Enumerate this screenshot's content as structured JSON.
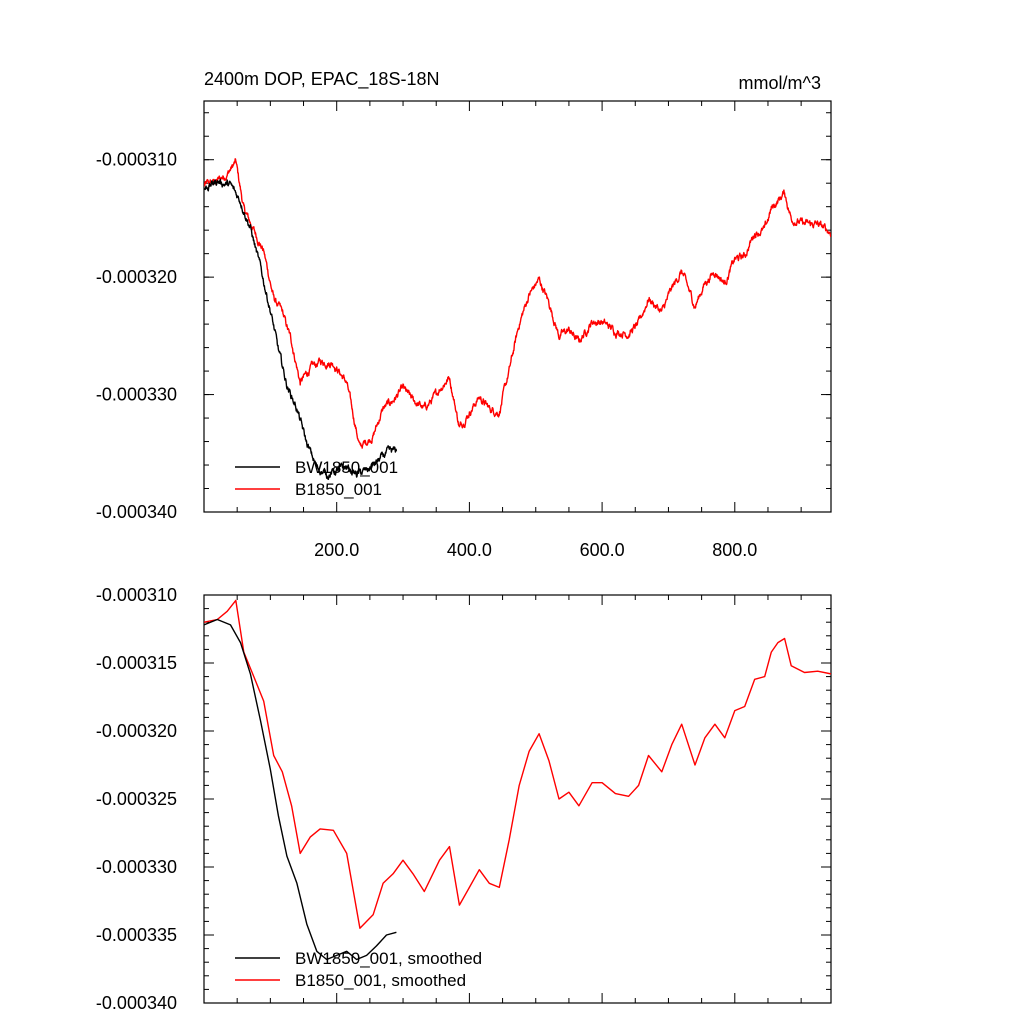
{
  "chart_data": [
    {
      "type": "line",
      "title": "2400m DOP, EPAC_18S-18N",
      "units": "mmol/m^3",
      "xlim": [
        0,
        945
      ],
      "ylim": [
        -0.00034,
        -0.000305
      ],
      "x_ticks": [
        200,
        400,
        600,
        800
      ],
      "x_tick_labels": [
        "200.0",
        "400.0",
        "600.0",
        "800.0"
      ],
      "y_ticks": [
        -0.00031,
        -0.00032,
        -0.00033,
        -0.00034
      ],
      "y_tick_labels": [
        "-0.000310",
        "-0.000320",
        "-0.000330",
        "-0.000340"
      ],
      "legend_position": "bottom-left",
      "noisy": true,
      "series": [
        {
          "name": "BW1850_001",
          "color": "#000000",
          "points": [
            [
              0,
              -0.0003125
            ],
            [
              20,
              -0.0003118
            ],
            [
              40,
              -0.0003122
            ],
            [
              55,
              -0.0003135
            ],
            [
              70,
              -0.0003158
            ],
            [
              85,
              -0.0003192
            ],
            [
              100,
              -0.0003228
            ],
            [
              112,
              -0.0003262
            ],
            [
              125,
              -0.0003292
            ],
            [
              140,
              -0.0003312
            ],
            [
              155,
              -0.0003342
            ],
            [
              170,
              -0.0003362
            ],
            [
              185,
              -0.0003368
            ],
            [
              200,
              -0.0003365
            ],
            [
              215,
              -0.0003362
            ],
            [
              230,
              -0.0003368
            ],
            [
              245,
              -0.0003365
            ],
            [
              260,
              -0.0003358
            ],
            [
              275,
              -0.000335
            ],
            [
              290,
              -0.0003348
            ]
          ]
        },
        {
          "name": "B1850_001",
          "color": "#ff0000",
          "points": [
            [
              0,
              -0.0003122
            ],
            [
              20,
              -0.0003118
            ],
            [
              35,
              -0.0003112
            ],
            [
              48,
              -0.0003102
            ],
            [
              60,
              -0.0003142
            ],
            [
              75,
              -0.000316
            ],
            [
              90,
              -0.0003178
            ],
            [
              105,
              -0.0003218
            ],
            [
              118,
              -0.000323
            ],
            [
              132,
              -0.0003255
            ],
            [
              145,
              -0.000329
            ],
            [
              160,
              -0.0003278
            ],
            [
              175,
              -0.0003272
            ],
            [
              195,
              -0.0003273
            ],
            [
              215,
              -0.000329
            ],
            [
              235,
              -0.0003345
            ],
            [
              255,
              -0.0003335
            ],
            [
              270,
              -0.0003312
            ],
            [
              285,
              -0.0003305
            ],
            [
              300,
              -0.0003295
            ],
            [
              315,
              -0.0003305
            ],
            [
              332,
              -0.0003312
            ],
            [
              348,
              -0.0003302
            ],
            [
              355,
              -0.0003295
            ],
            [
              370,
              -0.0003285
            ],
            [
              385,
              -0.0003328
            ],
            [
              400,
              -0.0003315
            ],
            [
              415,
              -0.0003302
            ],
            [
              430,
              -0.0003312
            ],
            [
              445,
              -0.0003315
            ],
            [
              460,
              -0.000328
            ],
            [
              475,
              -0.000324
            ],
            [
              490,
              -0.0003215
            ],
            [
              505,
              -0.0003202
            ],
            [
              520,
              -0.0003222
            ],
            [
              535,
              -0.000325
            ],
            [
              550,
              -0.0003245
            ],
            [
              565,
              -0.0003255
            ],
            [
              585,
              -0.0003238
            ],
            [
              600,
              -0.0003238
            ],
            [
              620,
              -0.0003246
            ],
            [
              640,
              -0.0003248
            ],
            [
              655,
              -0.000324
            ],
            [
              670,
              -0.0003218
            ],
            [
              690,
              -0.000323
            ],
            [
              705,
              -0.000321
            ],
            [
              720,
              -0.0003195
            ],
            [
              740,
              -0.0003225
            ],
            [
              755,
              -0.0003205
            ],
            [
              770,
              -0.0003195
            ],
            [
              785,
              -0.0003205
            ],
            [
              800,
              -0.0003185
            ],
            [
              815,
              -0.0003182
            ],
            [
              830,
              -0.0003162
            ],
            [
              845,
              -0.000316
            ],
            [
              855,
              -0.0003142
            ],
            [
              865,
              -0.0003135
            ],
            [
              875,
              -0.0003128
            ],
            [
              885,
              -0.000315
            ],
            [
              905,
              -0.0003155
            ],
            [
              925,
              -0.0003155
            ],
            [
              945,
              -0.0003162
            ]
          ]
        }
      ]
    },
    {
      "type": "line",
      "title": "",
      "units": "",
      "xlim": [
        0,
        945
      ],
      "ylim": [
        -0.00034,
        -0.00031
      ],
      "x_ticks": [
        200,
        400,
        600,
        800
      ],
      "x_tick_labels": [],
      "y_ticks": [
        -0.00031,
        -0.000315,
        -0.00032,
        -0.000325,
        -0.00033,
        -0.000335,
        -0.00034
      ],
      "y_tick_labels": [
        "-0.000310",
        "-0.000315",
        "-0.000320",
        "-0.000325",
        "-0.000330",
        "-0.000335",
        "-0.000340"
      ],
      "legend_position": "bottom-left",
      "noisy": false,
      "series": [
        {
          "name": "BW1850_001, smoothed",
          "color": "#000000",
          "points": [
            [
              0,
              -0.0003122
            ],
            [
              20,
              -0.0003118
            ],
            [
              40,
              -0.0003122
            ],
            [
              55,
              -0.0003135
            ],
            [
              70,
              -0.0003158
            ],
            [
              85,
              -0.0003192
            ],
            [
              100,
              -0.0003228
            ],
            [
              112,
              -0.0003262
            ],
            [
              125,
              -0.0003292
            ],
            [
              140,
              -0.0003312
            ],
            [
              155,
              -0.0003342
            ],
            [
              170,
              -0.0003362
            ],
            [
              185,
              -0.0003368
            ],
            [
              200,
              -0.0003365
            ],
            [
              215,
              -0.0003362
            ],
            [
              230,
              -0.0003368
            ],
            [
              245,
              -0.0003365
            ],
            [
              260,
              -0.0003358
            ],
            [
              275,
              -0.000335
            ],
            [
              290,
              -0.0003348
            ]
          ]
        },
        {
          "name": "B1850_001, smoothed",
          "color": "#ff0000",
          "points": [
            [
              0,
              -0.000312
            ],
            [
              20,
              -0.0003118
            ],
            [
              35,
              -0.0003112
            ],
            [
              48,
              -0.0003104
            ],
            [
              60,
              -0.0003142
            ],
            [
              75,
              -0.000316
            ],
            [
              90,
              -0.0003178
            ],
            [
              105,
              -0.0003218
            ],
            [
              118,
              -0.000323
            ],
            [
              132,
              -0.0003255
            ],
            [
              145,
              -0.000329
            ],
            [
              160,
              -0.0003278
            ],
            [
              175,
              -0.0003272
            ],
            [
              195,
              -0.0003273
            ],
            [
              215,
              -0.000329
            ],
            [
              235,
              -0.0003345
            ],
            [
              255,
              -0.0003335
            ],
            [
              270,
              -0.0003312
            ],
            [
              285,
              -0.0003305
            ],
            [
              300,
              -0.0003295
            ],
            [
              315,
              -0.0003305
            ],
            [
              332,
              -0.0003318
            ],
            [
              348,
              -0.0003302
            ],
            [
              355,
              -0.0003295
            ],
            [
              370,
              -0.0003285
            ],
            [
              385,
              -0.0003328
            ],
            [
              400,
              -0.0003315
            ],
            [
              415,
              -0.0003302
            ],
            [
              430,
              -0.0003312
            ],
            [
              445,
              -0.0003315
            ],
            [
              460,
              -0.000328
            ],
            [
              475,
              -0.000324
            ],
            [
              490,
              -0.0003215
            ],
            [
              505,
              -0.0003202
            ],
            [
              520,
              -0.0003222
            ],
            [
              535,
              -0.000325
            ],
            [
              550,
              -0.0003245
            ],
            [
              565,
              -0.0003255
            ],
            [
              585,
              -0.0003238
            ],
            [
              600,
              -0.0003238
            ],
            [
              620,
              -0.0003246
            ],
            [
              640,
              -0.0003248
            ],
            [
              655,
              -0.000324
            ],
            [
              670,
              -0.0003218
            ],
            [
              690,
              -0.000323
            ],
            [
              705,
              -0.000321
            ],
            [
              720,
              -0.0003195
            ],
            [
              740,
              -0.0003225
            ],
            [
              755,
              -0.0003205
            ],
            [
              770,
              -0.0003195
            ],
            [
              785,
              -0.0003205
            ],
            [
              800,
              -0.0003185
            ],
            [
              815,
              -0.0003182
            ],
            [
              830,
              -0.0003162
            ],
            [
              845,
              -0.000316
            ],
            [
              855,
              -0.0003142
            ],
            [
              865,
              -0.0003135
            ],
            [
              875,
              -0.0003132
            ],
            [
              885,
              -0.0003152
            ],
            [
              905,
              -0.0003157
            ],
            [
              925,
              -0.0003156
            ],
            [
              945,
              -0.0003158
            ]
          ]
        }
      ]
    }
  ]
}
